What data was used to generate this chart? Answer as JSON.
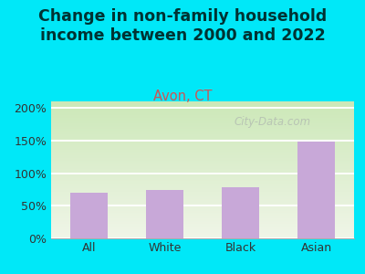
{
  "title": "Change in non-family household\nincome between 2000 and 2022",
  "subtitle": "Avon, CT",
  "categories": [
    "All",
    "White",
    "Black",
    "Asian"
  ],
  "values": [
    70,
    74,
    78,
    148
  ],
  "bar_color": "#c8a8d8",
  "title_fontsize": 12.5,
  "subtitle_fontsize": 10.5,
  "subtitle_color": "#cc5555",
  "title_color": "#003333",
  "background_outer": "#00e8f8",
  "grad_top": "#cce8b8",
  "grad_bottom": "#f0f5e8",
  "ylim": [
    0,
    210
  ],
  "yticks": [
    0,
    50,
    100,
    150,
    200
  ],
  "ytick_labels": [
    "0%",
    "50%",
    "100%",
    "150%",
    "200%"
  ],
  "watermark": "City-Data.com",
  "watermark_color": "#b0b8b0"
}
